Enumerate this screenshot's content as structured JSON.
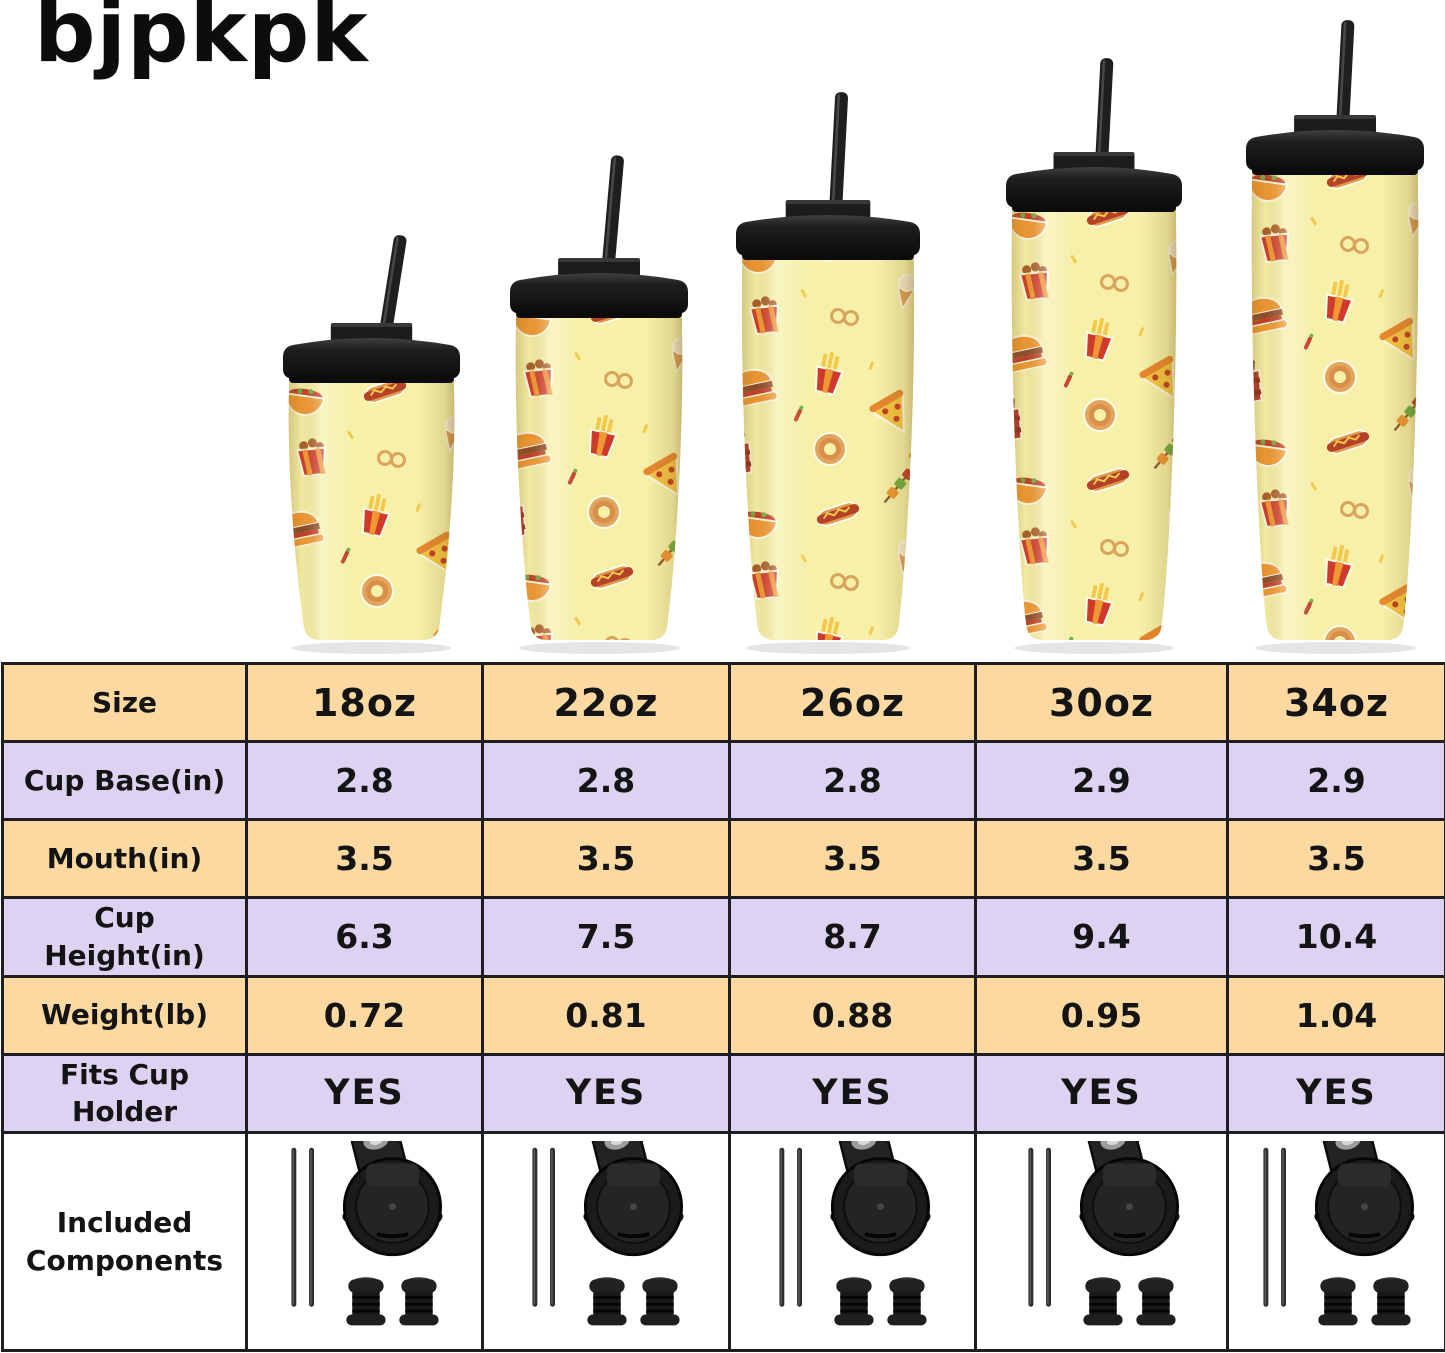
{
  "brand": {
    "logo": "bjpkpk"
  },
  "product": {
    "description": "Five insulated skinny tumblers with a fast-food doodle pattern (burgers, fries, pizza, tacos, hot dogs, donuts) on pale yellow, each with a black flip lid and black straw",
    "sizes": [
      "18oz",
      "22oz",
      "26oz",
      "30oz",
      "34oz"
    ]
  },
  "table": {
    "rows": [
      {
        "label": "Size",
        "values": [
          "18oz",
          "22oz",
          "26oz",
          "30oz",
          "34oz"
        ],
        "bg": "peach",
        "style": "header"
      },
      {
        "label": "Cup Base(in)",
        "values": [
          "2.8",
          "2.8",
          "2.8",
          "2.9",
          "2.9"
        ],
        "bg": "lavender",
        "style": "value"
      },
      {
        "label": "Mouth(in)",
        "values": [
          "3.5",
          "3.5",
          "3.5",
          "3.5",
          "3.5"
        ],
        "bg": "peach",
        "style": "value"
      },
      {
        "label": "Cup Height(in)",
        "values": [
          "6.3",
          "7.5",
          "8.7",
          "9.4",
          "10.4"
        ],
        "bg": "lavender",
        "style": "value"
      },
      {
        "label": "Weight(lb)",
        "values": [
          "0.72",
          "0.81",
          "0.88",
          "0.95",
          "1.04"
        ],
        "bg": "peach",
        "style": "value"
      },
      {
        "label": "Fits Cup Holder",
        "values": [
          "YES",
          "YES",
          "YES",
          "YES",
          "YES"
        ],
        "bg": "lavender",
        "style": "yes"
      },
      {
        "label": "Included Components",
        "values": [
          "kit",
          "kit",
          "kit",
          "kit",
          "kit"
        ],
        "bg": "white",
        "style": "components"
      }
    ],
    "components_kit": [
      "2 metal straws",
      "flip lid",
      "2 straw stoppers"
    ],
    "components_icon_names": [
      "straw-icon",
      "straw-icon",
      "flip-lid-icon",
      "straw-stopper-icon",
      "straw-stopper-icon"
    ]
  },
  "colors": {
    "peach": "#fbd9a0",
    "lavender": "#ddd2f1",
    "white": "#ffffff",
    "border": "#1d1d22",
    "text": "#141414",
    "cup_yellow": "#f6f0a9",
    "lid_black": "#1c1c1c",
    "accent_orange": "#ef9733",
    "accent_red": "#c23b28"
  }
}
